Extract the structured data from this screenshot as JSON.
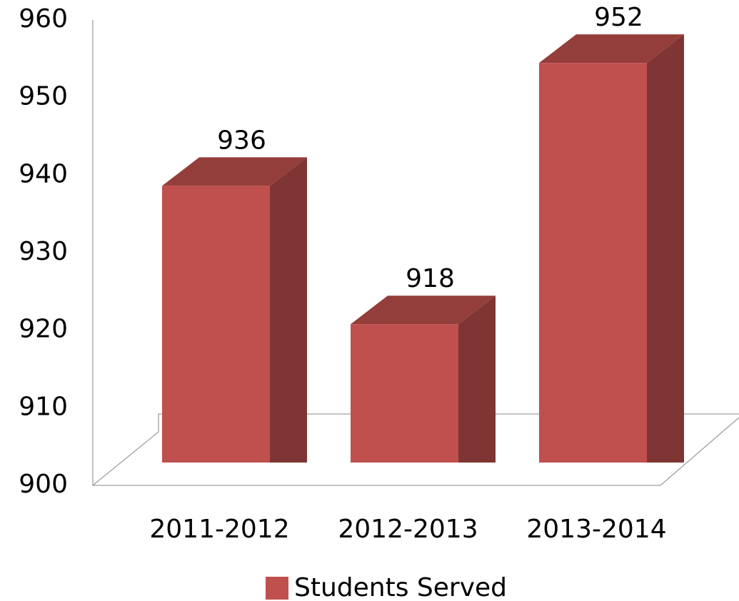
{
  "chart_data": {
    "type": "bar3d",
    "categories": [
      "2011-2012",
      "2012-2013",
      "2013-2014"
    ],
    "series": [
      {
        "name": "Students Served",
        "color": "#c0504d",
        "values": [
          936,
          918,
          952
        ]
      }
    ],
    "ylim": [
      900,
      960
    ],
    "yticks": [
      900,
      910,
      920,
      930,
      940,
      950,
      960
    ],
    "legend": "bottom"
  }
}
